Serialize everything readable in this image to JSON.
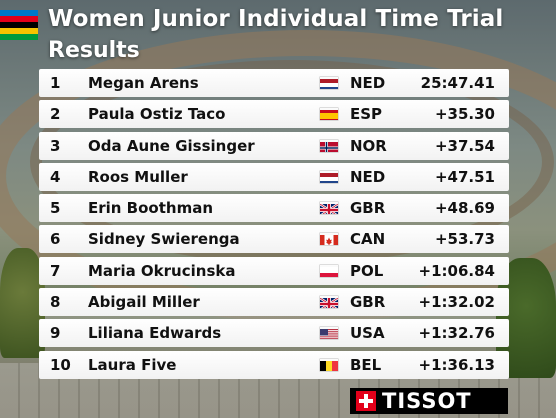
{
  "header": {
    "title": "Women Junior Individual Time Trial",
    "subtitle": "Results",
    "stripe_colors": [
      "#0078c8",
      "#e2001a",
      "#000000",
      "#f6c300",
      "#009a3d"
    ]
  },
  "results": [
    {
      "rank": "1",
      "name": "Megan Arens",
      "nation": "NED",
      "flag": "flag-netherlands-icon",
      "time": "25:47.41"
    },
    {
      "rank": "2",
      "name": "Paula Ostiz Taco",
      "nation": "ESP",
      "flag": "flag-spain-icon",
      "time": "+35.30"
    },
    {
      "rank": "3",
      "name": "Oda Aune Gissinger",
      "nation": "NOR",
      "flag": "flag-norway-icon",
      "time": "+37.54"
    },
    {
      "rank": "4",
      "name": "Roos Muller",
      "nation": "NED",
      "flag": "flag-netherlands-icon",
      "time": "+47.51"
    },
    {
      "rank": "5",
      "name": "Erin Boothman",
      "nation": "GBR",
      "flag": "flag-great-britain-icon",
      "time": "+48.69"
    },
    {
      "rank": "6",
      "name": "Sidney Swierenga",
      "nation": "CAN",
      "flag": "flag-canada-icon",
      "time": "+53.73"
    },
    {
      "rank": "7",
      "name": "Maria Okrucinska",
      "nation": "POL",
      "flag": "flag-poland-icon",
      "time": "+1:06.84"
    },
    {
      "rank": "8",
      "name": "Abigail Miller",
      "nation": "GBR",
      "flag": "flag-great-britain-icon",
      "time": "+1:32.02"
    },
    {
      "rank": "9",
      "name": "Liliana Edwards",
      "nation": "USA",
      "flag": "flag-usa-icon",
      "time": "+1:32.76"
    },
    {
      "rank": "10",
      "name": "Laura Five",
      "nation": "BEL",
      "flag": "flag-belgium-icon",
      "time": "+1:36.13"
    }
  ],
  "sponsor": {
    "logo": "TISSOT",
    "accent": "#e2001a"
  }
}
